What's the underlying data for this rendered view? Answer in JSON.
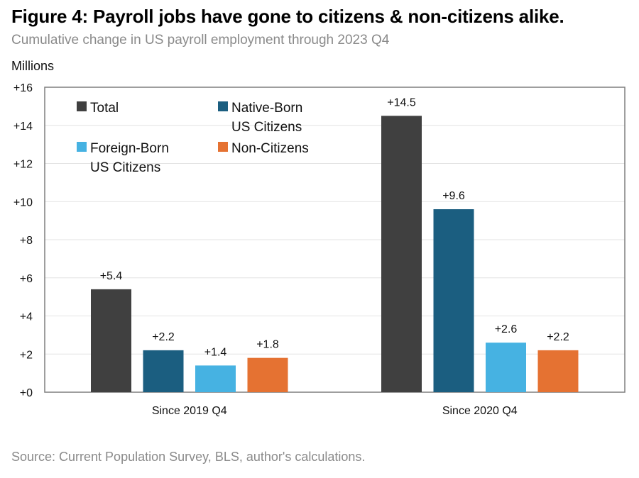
{
  "title": "Figure 4: Payroll jobs have gone to citizens & non-citizens alike.",
  "subtitle": "Cumulative change in US payroll employment through 2023 Q4",
  "source": "Source: Current Population Survey, BLS, author's calculations.",
  "chart_data": {
    "type": "bar",
    "title": "Figure 4: Payroll jobs have gone to citizens & non-citizens alike.",
    "subtitle": "Cumulative change in US payroll employment through 2023 Q4",
    "ylabel": "Millions",
    "xlabel": "",
    "ylim": [
      0,
      16
    ],
    "yticks": [
      0,
      2,
      4,
      6,
      8,
      10,
      12,
      14,
      16
    ],
    "ytick_labels": [
      "+0",
      "+2",
      "+4",
      "+6",
      "+8",
      "+10",
      "+12",
      "+14",
      "+16"
    ],
    "grid": true,
    "legend_position": "top-left",
    "categories": [
      "Since 2019 Q4",
      "Since 2020 Q4"
    ],
    "series": [
      {
        "name": "Total",
        "legend_lines": [
          "Total"
        ],
        "color": "#404040",
        "values": [
          5.4,
          14.5
        ],
        "labels": [
          "+5.4",
          "+14.5"
        ]
      },
      {
        "name": "Native-Born US Citizens",
        "legend_lines": [
          "Native-Born",
          "US Citizens"
        ],
        "color": "#1b5e80",
        "values": [
          2.2,
          9.6
        ],
        "labels": [
          "+2.2",
          "+9.6"
        ]
      },
      {
        "name": "Foreign-Born US Citizens",
        "legend_lines": [
          "Foreign-Born",
          "US Citizens"
        ],
        "color": "#46b2e2",
        "values": [
          1.4,
          2.6
        ],
        "labels": [
          "+1.4",
          "+2.6"
        ]
      },
      {
        "name": "Non-Citizens",
        "legend_lines": [
          "Non-Citizens"
        ],
        "color": "#e57232",
        "values": [
          1.8,
          2.2
        ],
        "labels": [
          "+1.8",
          "+2.2"
        ]
      }
    ]
  }
}
